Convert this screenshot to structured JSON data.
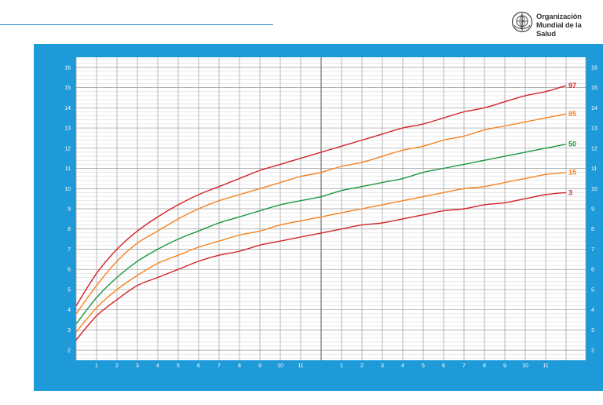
{
  "header": {
    "org_name_line1": "Organización",
    "org_name_line2": "Mundial de la Salud",
    "accent_color": "#2a8fcf"
  },
  "chart_data": {
    "type": "line",
    "title": "",
    "xlabel": "",
    "ylabel": "",
    "x_unit": "months",
    "xlim": [
      0,
      24
    ],
    "ylim": [
      1.5,
      16.5
    ],
    "y_ticks": [
      2,
      3,
      4,
      5,
      6,
      7,
      8,
      9,
      10,
      11,
      12,
      13,
      14,
      15,
      16
    ],
    "x_tick_labels": [
      "1",
      "2",
      "3",
      "4",
      "5",
      "6",
      "7",
      "8",
      "9",
      "10",
      "11",
      "1",
      "2",
      "3",
      "4",
      "5",
      "6",
      "7",
      "8",
      "9",
      "10",
      "11"
    ],
    "grid": true,
    "background_color": "#1f9ad8",
    "plot_background": "#ffffff",
    "series": [
      {
        "name": "97",
        "color": "#d2232a",
        "x": [
          0,
          1,
          2,
          3,
          4,
          5,
          6,
          7,
          8,
          9,
          10,
          11,
          12,
          13,
          14,
          15,
          16,
          17,
          18,
          19,
          20,
          21,
          22,
          23,
          24
        ],
        "values": [
          4.2,
          5.8,
          7.0,
          7.9,
          8.6,
          9.2,
          9.7,
          10.1,
          10.5,
          10.9,
          11.2,
          11.5,
          11.8,
          12.1,
          12.4,
          12.7,
          13.0,
          13.2,
          13.5,
          13.8,
          14.0,
          14.3,
          14.6,
          14.8,
          15.1
        ]
      },
      {
        "name": "85",
        "color": "#f58220",
        "x": [
          0,
          1,
          2,
          3,
          4,
          5,
          6,
          7,
          8,
          9,
          10,
          11,
          12,
          13,
          14,
          15,
          16,
          17,
          18,
          19,
          20,
          21,
          22,
          23,
          24
        ],
        "values": [
          3.8,
          5.2,
          6.4,
          7.3,
          7.9,
          8.5,
          9.0,
          9.4,
          9.7,
          10.0,
          10.3,
          10.6,
          10.8,
          11.1,
          11.3,
          11.6,
          11.9,
          12.1,
          12.4,
          12.6,
          12.9,
          13.1,
          13.3,
          13.5,
          13.7
        ]
      },
      {
        "name": "50",
        "color": "#1a9640",
        "x": [
          0,
          1,
          2,
          3,
          4,
          5,
          6,
          7,
          8,
          9,
          10,
          11,
          12,
          13,
          14,
          15,
          16,
          17,
          18,
          19,
          20,
          21,
          22,
          23,
          24
        ],
        "values": [
          3.3,
          4.6,
          5.6,
          6.4,
          7.0,
          7.5,
          7.9,
          8.3,
          8.6,
          8.9,
          9.2,
          9.4,
          9.6,
          9.9,
          10.1,
          10.3,
          10.5,
          10.8,
          11.0,
          11.2,
          11.4,
          11.6,
          11.8,
          12.0,
          12.2
        ]
      },
      {
        "name": "15",
        "color": "#f58220",
        "x": [
          0,
          1,
          2,
          3,
          4,
          5,
          6,
          7,
          8,
          9,
          10,
          11,
          12,
          13,
          14,
          15,
          16,
          17,
          18,
          19,
          20,
          21,
          22,
          23,
          24
        ],
        "values": [
          2.9,
          4.1,
          5.0,
          5.7,
          6.3,
          6.7,
          7.1,
          7.4,
          7.7,
          7.9,
          8.2,
          8.4,
          8.6,
          8.8,
          9.0,
          9.2,
          9.4,
          9.6,
          9.8,
          10.0,
          10.1,
          10.3,
          10.5,
          10.7,
          10.8
        ]
      },
      {
        "name": "3",
        "color": "#d2232a",
        "x": [
          0,
          1,
          2,
          3,
          4,
          5,
          6,
          7,
          8,
          9,
          10,
          11,
          12,
          13,
          14,
          15,
          16,
          17,
          18,
          19,
          20,
          21,
          22,
          23,
          24
        ],
        "values": [
          2.5,
          3.7,
          4.5,
          5.2,
          5.6,
          6.0,
          6.4,
          6.7,
          6.9,
          7.2,
          7.4,
          7.6,
          7.8,
          8.0,
          8.2,
          8.3,
          8.5,
          8.7,
          8.9,
          9.0,
          9.2,
          9.3,
          9.5,
          9.7,
          9.8
        ]
      }
    ]
  }
}
